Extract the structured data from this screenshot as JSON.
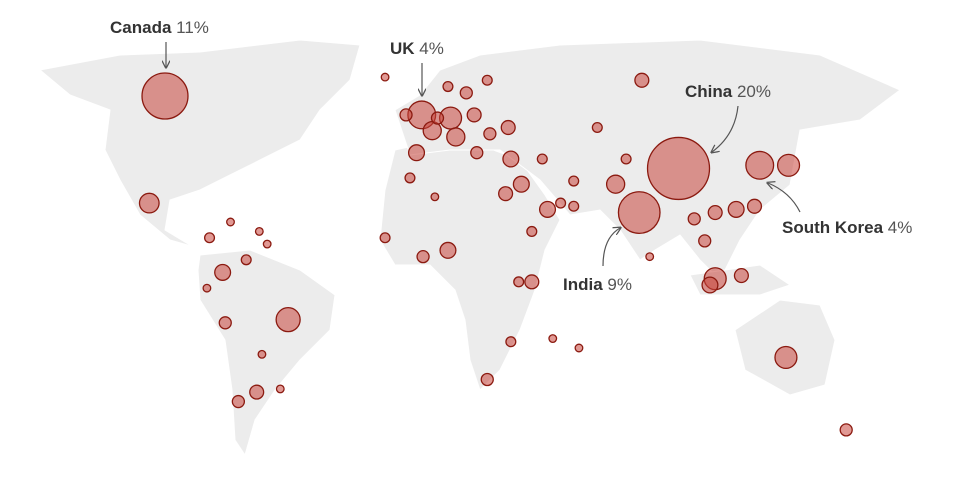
{
  "annotations": [
    {
      "name": "Canada",
      "value": 11,
      "value_label": "11%",
      "lon": -100,
      "lat": 60
    },
    {
      "name": "UK",
      "value": 4,
      "value_label": "4%",
      "lon": -2,
      "lat": 54
    },
    {
      "name": "China",
      "value": 20,
      "value_label": "20%",
      "lon": 96,
      "lat": 37
    },
    {
      "name": "India",
      "value": 9,
      "value_label": "9%",
      "lon": 81,
      "lat": 23
    },
    {
      "name": "South Korea",
      "value": 4,
      "value_label": "4%",
      "lon": 127,
      "lat": 38
    }
  ],
  "bubbles": [
    {
      "lon": 138,
      "lat": 38,
      "value": 2.5
    },
    {
      "lon": -106,
      "lat": 26,
      "value": 2
    },
    {
      "lon": -53,
      "lat": -11,
      "value": 3
    },
    {
      "lon": 137,
      "lat": -23,
      "value": 2.5
    },
    {
      "lon": 160,
      "lat": -46,
      "value": 0.75
    },
    {
      "lon": -65,
      "lat": -34,
      "value": 1
    },
    {
      "lon": -72,
      "lat": -37,
      "value": 0.75
    },
    {
      "lon": -77,
      "lat": -12,
      "value": 0.75
    },
    {
      "lon": -78,
      "lat": 4,
      "value": 1.3
    },
    {
      "lon": -69,
      "lat": 8,
      "value": 0.5
    },
    {
      "lon": -84,
      "lat": -1,
      "value": 0.3
    },
    {
      "lon": -63,
      "lat": -22,
      "value": 0.3
    },
    {
      "lon": -56,
      "lat": -33,
      "value": 0.3
    },
    {
      "lon": 2,
      "lat": 49,
      "value": 1.7
    },
    {
      "lon": 9,
      "lat": 53,
      "value": 2.5
    },
    {
      "lon": -4,
      "lat": 42,
      "value": 1.3
    },
    {
      "lon": 11,
      "lat": 47,
      "value": 1.7
    },
    {
      "lon": -8,
      "lat": 54,
      "value": 0.75
    },
    {
      "lon": 4,
      "lat": 53,
      "value": 0.75
    },
    {
      "lon": 18,
      "lat": 54,
      "value": 1
    },
    {
      "lon": 15,
      "lat": 61,
      "value": 0.75
    },
    {
      "lon": 8,
      "lat": 63,
      "value": 0.5
    },
    {
      "lon": 23,
      "lat": 65,
      "value": 0.5
    },
    {
      "lon": 82,
      "lat": 65,
      "value": 1
    },
    {
      "lon": -16,
      "lat": 66,
      "value": 0.3
    },
    {
      "lon": 31,
      "lat": 50,
      "value": 1
    },
    {
      "lon": 32,
      "lat": 40,
      "value": 1.3
    },
    {
      "lon": 56,
      "lat": 33,
      "value": 0.5
    },
    {
      "lon": 46,
      "lat": 24,
      "value": 1.3
    },
    {
      "lon": 56,
      "lat": 25,
      "value": 0.5
    },
    {
      "lon": 30,
      "lat": 29,
      "value": 1
    },
    {
      "lon": 36,
      "lat": 32,
      "value": 1.3
    },
    {
      "lon": 72,
      "lat": 32,
      "value": 1.7
    },
    {
      "lon": 102,
      "lat": 21,
      "value": 0.75
    },
    {
      "lon": 110,
      "lat": 23,
      "value": 1
    },
    {
      "lon": 125,
      "lat": 25,
      "value": 1
    },
    {
      "lon": 106,
      "lat": 14,
      "value": 0.75
    },
    {
      "lon": 110,
      "lat": 2,
      "value": 2.5
    },
    {
      "lon": 108,
      "lat": 0,
      "value": 1.3
    },
    {
      "lon": 120,
      "lat": 3,
      "value": 1
    },
    {
      "lon": 85,
      "lat": 9,
      "value": 0.3
    },
    {
      "lon": 118,
      "lat": 24,
      "value": 1.3
    },
    {
      "lon": 65,
      "lat": 50,
      "value": 0.5
    },
    {
      "lon": 8,
      "lat": 11,
      "value": 1.3
    },
    {
      "lon": -1.5,
      "lat": 9,
      "value": 0.75
    },
    {
      "lon": -6.5,
      "lat": 34,
      "value": 0.5
    },
    {
      "lon": 3,
      "lat": 28,
      "value": 0.3
    },
    {
      "lon": 40,
      "lat": 1,
      "value": 1
    },
    {
      "lon": 35,
      "lat": 1,
      "value": 0.5
    },
    {
      "lon": 40,
      "lat": 17,
      "value": 0.5
    },
    {
      "lon": 23,
      "lat": -30,
      "value": 0.75
    },
    {
      "lon": 32,
      "lat": -18,
      "value": 0.5
    },
    {
      "lon": -16,
      "lat": 15,
      "value": 0.5
    },
    {
      "lon": -83,
      "lat": 15,
      "value": 0.5
    },
    {
      "lon": -75,
      "lat": 20,
      "value": 0.3
    },
    {
      "lon": -64,
      "lat": 17,
      "value": 0.3
    },
    {
      "lon": -61,
      "lat": 13,
      "value": 0.3
    },
    {
      "lon": 19,
      "lat": 42,
      "value": 0.75
    },
    {
      "lon": 24,
      "lat": 48,
      "value": 0.75
    },
    {
      "lon": 58,
      "lat": -20,
      "value": 0.3
    },
    {
      "lon": 48,
      "lat": -17,
      "value": 0.3
    },
    {
      "lon": 51,
      "lat": 26,
      "value": 0.5
    },
    {
      "lon": 76,
      "lat": 40,
      "value": 0.5
    },
    {
      "lon": 44,
      "lat": 40,
      "value": 0.5
    }
  ]
}
